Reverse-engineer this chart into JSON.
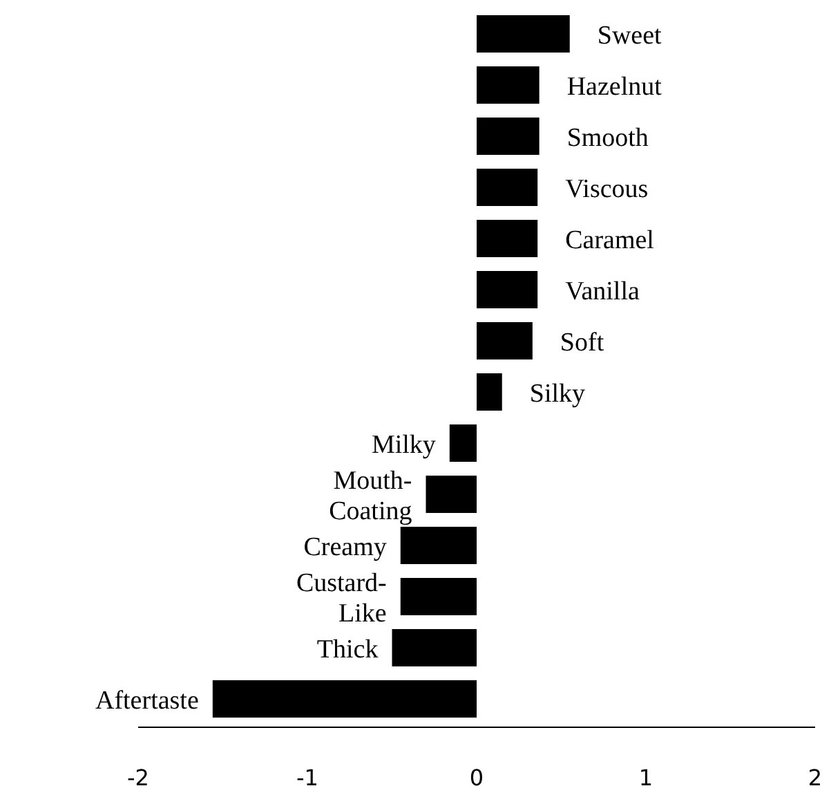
{
  "chart_data": {
    "type": "bar",
    "orientation": "horizontal",
    "categories": [
      "Sweet",
      "Hazelnut",
      "Smooth",
      "Viscous",
      "Caramel",
      "Vanilla",
      "Soft",
      "Silky",
      "Milky",
      "Mouth-Coating",
      "Creamy",
      "Custard-Like",
      "Thick",
      "Aftertaste"
    ],
    "values": [
      0.55,
      0.37,
      0.37,
      0.36,
      0.36,
      0.36,
      0.33,
      0.15,
      -0.16,
      -0.3,
      -0.45,
      -0.45,
      -0.5,
      -1.56
    ],
    "color": "#000000",
    "xlim": [
      -2,
      2
    ],
    "xticks": [
      -2,
      -1,
      0,
      1,
      2
    ],
    "grid": false
  }
}
